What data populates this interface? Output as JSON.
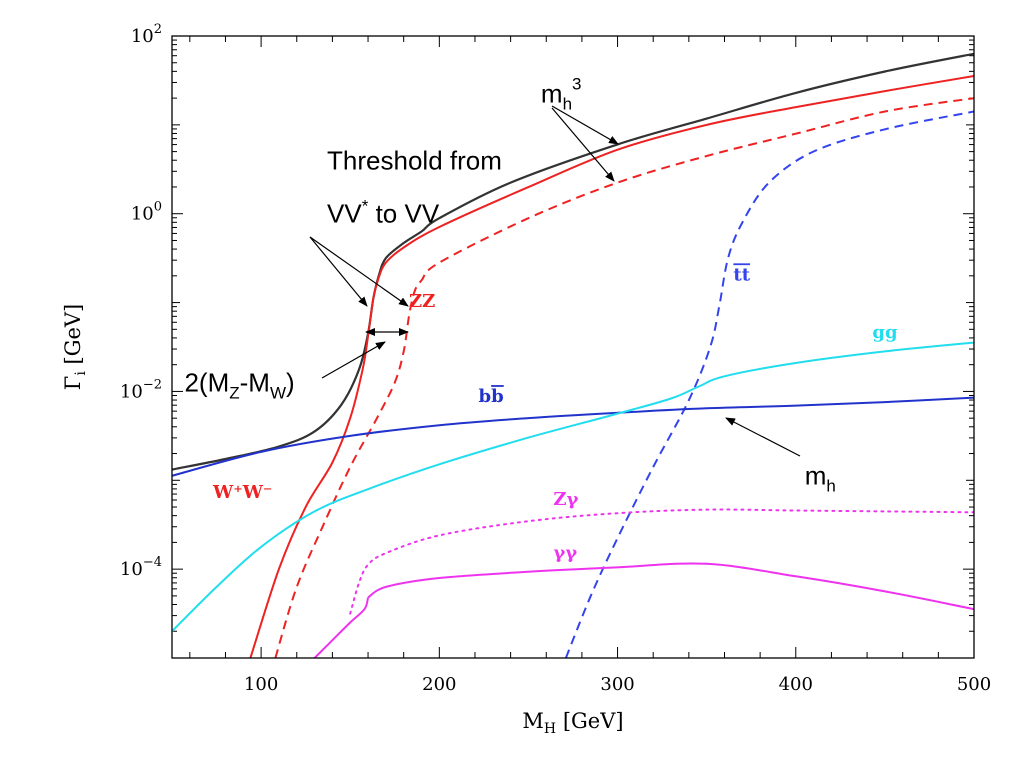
{
  "chart_data": {
    "type": "line",
    "xlabel": "M",
    "xlabel_sub": "H",
    "xlabel_unit": "[GeV]",
    "ylabel": "Γ",
    "ylabel_sub": "i",
    "ylabel_unit": "[GeV]",
    "yscale": "log",
    "xlim": [
      50,
      500
    ],
    "ylim_log10": [
      -5,
      2
    ],
    "x_ticks": [
      100,
      200,
      300,
      400,
      500
    ],
    "x_tick_labels": [
      "100",
      "200",
      "300",
      "400",
      "500"
    ],
    "y_ticks_log10": [
      -4,
      -2,
      0,
      2
    ],
    "y_tick_base": "10",
    "y_tick_exps": [
      "−4",
      "−2",
      "0",
      "2"
    ],
    "grid": false,
    "series": [
      {
        "key": "total",
        "color": "#333333",
        "style": "solid",
        "width": 2.2,
        "points": [
          [
            50,
            -2.88
          ],
          [
            80,
            -2.76
          ],
          [
            110,
            -2.62
          ],
          [
            130,
            -2.45
          ],
          [
            145,
            -2.15
          ],
          [
            155,
            -1.75
          ],
          [
            160,
            -1.35
          ],
          [
            163,
            -0.95
          ],
          [
            166,
            -0.7
          ],
          [
            170,
            -0.5
          ],
          [
            180,
            -0.33
          ],
          [
            190,
            -0.2
          ],
          [
            200,
            -0.05
          ],
          [
            240,
            0.35
          ],
          [
            300,
            0.78
          ],
          [
            350,
            1.07
          ],
          [
            400,
            1.36
          ],
          [
            450,
            1.6
          ],
          [
            500,
            1.8
          ]
        ]
      },
      {
        "key": "ww",
        "color": "#ee2222",
        "style": "solid",
        "width": 2,
        "points": [
          [
            94,
            -5.0
          ],
          [
            110,
            -4.0
          ],
          [
            125,
            -3.3
          ],
          [
            140,
            -2.8
          ],
          [
            150,
            -2.3
          ],
          [
            157,
            -1.75
          ],
          [
            160,
            -1.38
          ],
          [
            163,
            -0.95
          ],
          [
            166,
            -0.72
          ],
          [
            170,
            -0.55
          ],
          [
            180,
            -0.38
          ],
          [
            200,
            -0.15
          ],
          [
            250,
            0.3
          ],
          [
            300,
            0.72
          ],
          [
            350,
            1.0
          ],
          [
            400,
            1.2
          ],
          [
            450,
            1.38
          ],
          [
            500,
            1.55
          ]
        ]
      },
      {
        "key": "zz",
        "color": "#ee2222",
        "style": "dashed",
        "width": 2,
        "points": [
          [
            108,
            -5.0
          ],
          [
            120,
            -4.2
          ],
          [
            135,
            -3.5
          ],
          [
            150,
            -2.85
          ],
          [
            165,
            -2.3
          ],
          [
            175,
            -1.9
          ],
          [
            180,
            -1.55
          ],
          [
            183,
            -1.15
          ],
          [
            186,
            -0.88
          ],
          [
            190,
            -0.75
          ],
          [
            200,
            -0.55
          ],
          [
            250,
            -0.05
          ],
          [
            300,
            0.35
          ],
          [
            350,
            0.65
          ],
          [
            400,
            0.9
          ],
          [
            450,
            1.15
          ],
          [
            500,
            1.3
          ]
        ]
      },
      {
        "key": "tt",
        "color": "#3344ee",
        "style": "dashed",
        "width": 2,
        "points": [
          [
            271,
            -5.0
          ],
          [
            285,
            -4.3
          ],
          [
            300,
            -3.65
          ],
          [
            320,
            -2.85
          ],
          [
            340,
            -2.1
          ],
          [
            352,
            -1.5
          ],
          [
            357,
            -1.05
          ],
          [
            362,
            -0.5
          ],
          [
            370,
            -0.1
          ],
          [
            385,
            0.35
          ],
          [
            410,
            0.7
          ],
          [
            450,
            0.95
          ],
          [
            500,
            1.15
          ]
        ]
      },
      {
        "key": "bb",
        "color": "#2233cc",
        "style": "solid",
        "width": 2,
        "points": [
          [
            50,
            -2.95
          ],
          [
            100,
            -2.68
          ],
          [
            150,
            -2.5
          ],
          [
            200,
            -2.38
          ],
          [
            250,
            -2.3
          ],
          [
            300,
            -2.24
          ],
          [
            350,
            -2.19
          ],
          [
            400,
            -2.16
          ],
          [
            450,
            -2.12
          ],
          [
            500,
            -2.07
          ]
        ]
      },
      {
        "key": "gg",
        "color": "#22ddee",
        "style": "solid",
        "width": 2,
        "points": [
          [
            50,
            -4.7
          ],
          [
            75,
            -4.2
          ],
          [
            100,
            -3.75
          ],
          [
            130,
            -3.35
          ],
          [
            160,
            -3.1
          ],
          [
            200,
            -2.82
          ],
          [
            250,
            -2.52
          ],
          [
            300,
            -2.25
          ],
          [
            330,
            -2.08
          ],
          [
            345,
            -1.95
          ],
          [
            360,
            -1.83
          ],
          [
            400,
            -1.68
          ],
          [
            450,
            -1.55
          ],
          [
            500,
            -1.45
          ]
        ]
      },
      {
        "key": "zgamma",
        "color": "#ee33ee",
        "style": "dotted",
        "width": 2,
        "points": [
          [
            150,
            -4.5
          ],
          [
            155,
            -4.15
          ],
          [
            160,
            -3.95
          ],
          [
            170,
            -3.82
          ],
          [
            200,
            -3.62
          ],
          [
            250,
            -3.46
          ],
          [
            300,
            -3.37
          ],
          [
            350,
            -3.33
          ],
          [
            400,
            -3.34
          ],
          [
            450,
            -3.35
          ],
          [
            500,
            -3.36
          ]
        ]
      },
      {
        "key": "zgamma_low",
        "color": "#ee33ee",
        "style": "solid",
        "width": 2,
        "points": [
          [
            130,
            -5.0
          ],
          [
            140,
            -4.8
          ],
          [
            150,
            -4.6
          ],
          [
            158,
            -4.45
          ],
          [
            160,
            -4.32
          ]
        ]
      },
      {
        "key": "gammagamma",
        "color": "#ee33ee",
        "style": "solid",
        "width": 2,
        "points": [
          [
            160,
            -4.32
          ],
          [
            170,
            -4.2
          ],
          [
            200,
            -4.1
          ],
          [
            250,
            -4.03
          ],
          [
            300,
            -3.98
          ],
          [
            350,
            -3.94
          ],
          [
            400,
            -4.08
          ],
          [
            450,
            -4.25
          ],
          [
            500,
            -4.45
          ]
        ]
      }
    ],
    "curve_labels": [
      {
        "key": "zz",
        "text": "ZZ",
        "color": "#ee2222",
        "x": 183,
        "y": -1.05,
        "font": "serif"
      },
      {
        "key": "tt",
        "text": "tt",
        "color": "#3344ee",
        "x": 365,
        "y": -0.75,
        "font": "serif",
        "overline": true
      },
      {
        "key": "gg",
        "text": "gg",
        "color": "#22ddee",
        "x": 443,
        "y": -1.4,
        "font": "serif"
      },
      {
        "key": "bb",
        "text": "bb",
        "color": "#2233cc",
        "x": 222,
        "y": -2.12,
        "font": "serif",
        "overline_second": true
      },
      {
        "key": "ww",
        "text": "W⁺W⁻",
        "color": "#ee2222",
        "x": 73,
        "y": -3.2,
        "font": "serif"
      },
      {
        "key": "zgamma",
        "text": "Zγ",
        "color": "#ee33ee",
        "x": 264,
        "y": -3.28,
        "font": "serif"
      },
      {
        "key": "gammagamma",
        "text": "γγ",
        "color": "#ee33ee",
        "x": 264,
        "y": -3.88,
        "font": "serif"
      }
    ],
    "annotations": [
      {
        "key": "mh3",
        "text": "m",
        "sub": "h",
        "sup": "3",
        "x": 257,
        "y": 1.25
      },
      {
        "key": "threshold1",
        "text": "Threshold from",
        "x": 137,
        "y": 0.5
      },
      {
        "key": "threshold2",
        "text": "VV",
        "sup": "*",
        "suffix": " to VV",
        "x": 137,
        "y": -0.1
      },
      {
        "key": "mzw",
        "text": "2(M",
        "sub": "Z",
        "mid": "-M",
        "sub2": "W",
        "end": ")",
        "x": 57,
        "y": -2.0
      },
      {
        "key": "mh",
        "text": "m",
        "sub": "h",
        "x": 405,
        "y": -3.05
      }
    ]
  }
}
